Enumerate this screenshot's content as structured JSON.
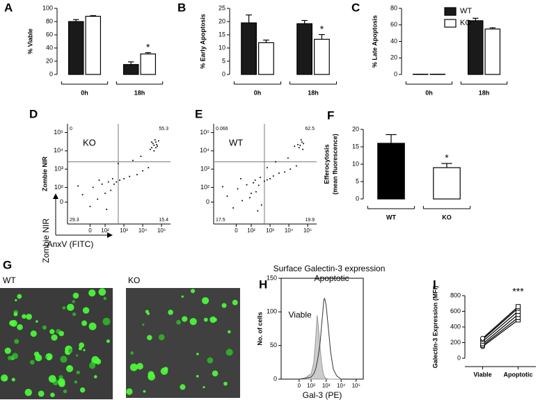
{
  "chart_data": [
    {
      "type": "bar",
      "panel": "A",
      "ylabel": "% Viable",
      "categories": [
        "0h",
        "18h"
      ],
      "ylim": [
        0,
        100
      ],
      "yticks": [
        0,
        20,
        40,
        60,
        80,
        100
      ],
      "series": [
        {
          "color": "#1a1a1a",
          "values": [
            80,
            15
          ],
          "errors": [
            3,
            4
          ]
        },
        {
          "color": "#ffffff",
          "values": [
            88,
            31
          ],
          "errors": [
            1,
            2
          ],
          "marks": [
            null,
            "*"
          ]
        }
      ]
    },
    {
      "type": "bar",
      "panel": "B",
      "ylabel": "% Early Apoptosis",
      "categories": [
        "0h",
        "18h"
      ],
      "ylim": [
        0,
        25
      ],
      "yticks": [
        0,
        5,
        10,
        15,
        20,
        25
      ],
      "series": [
        {
          "color": "#1a1a1a",
          "values": [
            19.5,
            19.2
          ],
          "errors": [
            3,
            1.2
          ]
        },
        {
          "color": "#ffffff",
          "values": [
            12,
            13.3
          ],
          "errors": [
            1,
            1.8
          ],
          "marks": [
            null,
            "*"
          ]
        }
      ]
    },
    {
      "type": "bar",
      "panel": "C",
      "ylabel": "% Late Apoptosis",
      "categories": [
        "0h",
        "18h"
      ],
      "ylim": [
        0,
        80
      ],
      "yticks": [
        0,
        20,
        40,
        60,
        80
      ],
      "legend": "upper center",
      "series": [
        {
          "name": "WT",
          "color": "#1a1a1a",
          "values": [
            0.3,
            65
          ],
          "errors": [
            0,
            3
          ]
        },
        {
          "name": "KO",
          "color": "#ffffff",
          "values": [
            0.3,
            55
          ],
          "errors": [
            0,
            1.5
          ]
        }
      ]
    },
    {
      "type": "scatter",
      "panel": "D",
      "label": "KO",
      "xlabel": "AnxV (FITC)",
      "ylabel": "Zombie NIR",
      "color": "#000000",
      "xlim": [
        -150,
        300000
      ],
      "ylim": [
        -150,
        300000
      ],
      "xticks": [
        0,
        {
          "value": 100,
          "label": "10²"
        },
        {
          "value": 1000,
          "label": "10³"
        },
        {
          "value": 10000,
          "label": "10⁴"
        },
        {
          "value": 100000,
          "label": "10⁵"
        }
      ],
      "yticks": [
        0,
        {
          "value": 100,
          "label": "10²"
        },
        {
          "value": 1000,
          "label": "10³"
        },
        {
          "value": 10000,
          "label": "10⁴"
        },
        {
          "value": 100000,
          "label": "10⁵"
        }
      ],
      "gate": {
        "x": 500,
        "y": 2500
      },
      "quadrants": [
        0,
        55.3,
        29.3,
        15.4
      ],
      "x": [
        -50,
        0,
        20,
        50,
        80,
        100,
        150,
        200,
        300,
        120,
        -80,
        60,
        250,
        400,
        600,
        1000,
        2000,
        5000,
        10000,
        20000,
        30000,
        40000,
        50000,
        35000,
        60000,
        45000,
        25000,
        55000,
        40000,
        70000,
        30000,
        50000,
        3000,
        8000,
        500
      ],
      "y": [
        50,
        -30,
        100,
        20,
        150,
        60,
        200,
        80,
        150,
        -50,
        120,
        250,
        300,
        200,
        250,
        300,
        400,
        500,
        800,
        1200,
        15000,
        20000,
        30000,
        25000,
        18000,
        40000,
        12000,
        22000,
        10000,
        35000,
        30000,
        15000,
        3000,
        5000,
        2000
      ]
    },
    {
      "type": "scatter",
      "panel": "E",
      "label": "WT",
      "color": "#000000",
      "xlim": [
        -150,
        300000
      ],
      "ylim": [
        -150,
        300000
      ],
      "xticks": [
        0,
        {
          "value": 100,
          "label": "10²"
        },
        {
          "value": 1000,
          "label": "10³"
        },
        {
          "value": 10000,
          "label": "10⁴"
        },
        {
          "value": 100000,
          "label": "10⁵"
        }
      ],
      "yticks": [
        0,
        {
          "value": 100,
          "label": "10²"
        },
        {
          "value": 1000,
          "label": "10³"
        },
        {
          "value": 10000,
          "label": "10⁴"
        },
        {
          "value": 100000,
          "label": "10⁵"
        }
      ],
      "gate": {
        "x": 500,
        "y": 2500
      },
      "quadrants": [
        0.066,
        62.5,
        17.5,
        19.9
      ],
      "x": [
        -60,
        -20,
        10,
        40,
        70,
        100,
        130,
        180,
        250,
        350,
        500,
        700,
        -90,
        30,
        90,
        160,
        220,
        300,
        1000,
        1500,
        3000,
        6000,
        12000,
        25000,
        40000,
        50000,
        35000,
        60000,
        45000,
        30000,
        55000,
        20000,
        2000,
        9000,
        700
      ],
      "y": [
        40,
        -40,
        90,
        10,
        140,
        60,
        180,
        70,
        130,
        -20,
        220,
        260,
        110,
        300,
        30,
        250,
        -60,
        350,
        300,
        420,
        600,
        700,
        1000,
        1500,
        20000,
        30000,
        15000,
        25000,
        40000,
        22000,
        12000,
        18000,
        2500,
        4000,
        1200
      ]
    },
    {
      "type": "bar",
      "panel": "F",
      "ylabel": "Efferocytosis",
      "ylabel2": "(mean fluorescence)",
      "categories": [
        "WT",
        "KO"
      ],
      "values": [
        16,
        9
      ],
      "errors": [
        2.5,
        1.2
      ],
      "colors": [
        "#000000",
        "#ffffff"
      ],
      "marks": [
        null,
        "*"
      ],
      "ylim": [
        0,
        20
      ],
      "yticks": [
        0,
        5,
        10,
        15,
        20
      ]
    },
    {
      "type": "line",
      "panel": "H",
      "title": "Surface Galectin-3 expression",
      "xlabel": "Gal-3 (PE)",
      "ylabel": "No. of cells",
      "xlim": [
        -150,
        300000
      ],
      "ylim": [
        0,
        150
      ],
      "xticks": [
        0,
        {
          "value": 100,
          "label": "10²"
        },
        {
          "value": 1000,
          "label": "10³"
        },
        {
          "value": 10000,
          "label": "10⁴"
        },
        {
          "value": 100000,
          "label": "10⁵"
        }
      ],
      "yticks": [
        0,
        50,
        100,
        150
      ],
      "x": [
        0,
        50,
        100,
        150,
        200,
        250,
        300,
        400,
        500,
        600,
        700,
        800,
        1000,
        1500,
        2000,
        3000,
        5000,
        10000
      ],
      "series": [
        {
          "name": "Viable",
          "color": "#999999",
          "fill": "#cccccc",
          "values": [
            0,
            2,
            8,
            25,
            60,
            95,
            80,
            45,
            25,
            12,
            6,
            3,
            1,
            0,
            0,
            0,
            0,
            0
          ]
        },
        {
          "name": "Apoptotic",
          "color": "#333333",
          "values": [
            0,
            1,
            3,
            8,
            15,
            25,
            35,
            55,
            80,
            100,
            118,
            120,
            110,
            70,
            40,
            15,
            5,
            0
          ]
        }
      ]
    },
    {
      "type": "line",
      "panel": "I",
      "ylabel": "Galectin-3 Expression (MFI)",
      "annotation": "***",
      "categories": [
        "Viable",
        "Apoptotic"
      ],
      "ylim": [
        0,
        800
      ],
      "yticks": [
        0,
        200,
        400,
        600,
        800
      ],
      "series": [
        {
          "color": "#000000",
          "values": [
            150,
            490
          ]
        },
        {
          "color": "#000000",
          "values": [
            165,
            520
          ]
        },
        {
          "color": "#000000",
          "values": [
            185,
            560
          ]
        },
        {
          "color": "#000000",
          "values": [
            215,
            600
          ]
        },
        {
          "color": "#000000",
          "values": [
            240,
            640
          ]
        },
        {
          "color": "#000000",
          "values": [
            255,
            660
          ]
        }
      ]
    }
  ],
  "micrographs": {
    "panel": "G",
    "labels": [
      "WT",
      "KO"
    ]
  }
}
